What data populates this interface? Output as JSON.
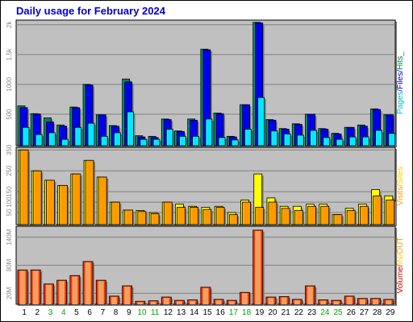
{
  "chart_data": {
    "type": "bar",
    "title": "Daily usage for February 2024",
    "categories": [
      "1",
      "2",
      "3",
      "4",
      "5",
      "6",
      "7",
      "8",
      "9",
      "10",
      "11",
      "12",
      "13",
      "14",
      "15",
      "16",
      "17",
      "18",
      "19",
      "20",
      "21",
      "22",
      "23",
      "24",
      "25",
      "26",
      "27",
      "28",
      "29"
    ],
    "weekend_days": [
      "3",
      "4",
      "10",
      "11",
      "17",
      "18",
      "24",
      "25"
    ],
    "colors": {
      "title": "#0000cc",
      "panel_bg": "#c0c0c0",
      "hits": "#008060",
      "files": "#0000ee",
      "pages": "#00e8ff",
      "visits": "#ff9900",
      "sites": "#ffff00",
      "kbytes": "#ff3300",
      "weekend_label": "#00a000",
      "label_pages": "#00c0c0",
      "label_files": "#0000cc",
      "label_hits": "#008040",
      "label_visits": "#ff9900",
      "label_sites": "#ffcc00",
      "label_volume": "#cc0000",
      "label_in": "#ffcc00",
      "label_out": "#ff9900"
    },
    "panels": [
      {
        "id": "hits",
        "yticks": [
          {
            "v": 500,
            "t": "500"
          },
          {
            "v": 1000,
            "t": "1000"
          },
          {
            "v": 1500,
            "t": "1,5k"
          },
          {
            "v": 2000,
            "t": "2k"
          }
        ],
        "ymax": 2050,
        "legend": [
          {
            "text": "Pages",
            "color": "label_pages"
          },
          {
            "text": "/",
            "color": "label_files"
          },
          {
            "text": "Files",
            "color": "label_files"
          },
          {
            "text": "/",
            "color": "label_files"
          },
          {
            "text": "Hits",
            "color": "label_hits"
          },
          {
            "text": "_",
            "color": "label_hits"
          }
        ],
        "series": [
          {
            "name": "Hits",
            "color": "hits",
            "values": [
              640,
              510,
              440,
              320,
              620,
              1000,
              490,
              310,
              1090,
              140,
              130,
              420,
              220,
              420,
              1590,
              520,
              130,
              660,
              2040,
              410,
              260,
              340,
              500,
              260,
              180,
              280,
              320,
              590,
              490
            ]
          },
          {
            "name": "Files",
            "color": "files",
            "values": [
              610,
              505,
              370,
              300,
              610,
              990,
              490,
              300,
              1040,
              120,
              110,
              410,
              210,
              400,
              1580,
              510,
              120,
              660,
              2030,
              400,
              250,
              330,
              500,
              250,
              170,
              280,
              300,
              580,
              490
            ]
          },
          {
            "name": "Pages",
            "color": "pages",
            "values": [
              280,
              160,
              190,
              80,
              280,
              350,
              130,
              190,
              540,
              80,
              80,
              250,
              130,
              130,
              420,
              110,
              70,
              250,
              780,
              220,
              170,
              150,
              230,
              110,
              80,
              120,
              120,
              230,
              180
            ]
          }
        ]
      },
      {
        "id": "visits",
        "yticks": [
          {
            "v": 50,
            "t": "50"
          },
          {
            "v": 100,
            "t": "100"
          },
          {
            "v": 150,
            "t": "150"
          },
          {
            "v": 250,
            "t": "250"
          },
          {
            "v": 350,
            "t": "350"
          }
        ],
        "ymax": 355,
        "legend": [
          {
            "text": "Visits",
            "color": "label_visits"
          },
          {
            "text": "/",
            "color": "label_visits"
          },
          {
            "text": "Sites",
            "color": "label_sites"
          }
        ],
        "series": [
          {
            "name": "Sites",
            "color": "sites",
            "values": [
              350,
              250,
              205,
              180,
              235,
              300,
              220,
              100,
              62,
              60,
              50,
              100,
              90,
              80,
              75,
              80,
              50,
              110,
              235,
              120,
              80,
              80,
              90,
              90,
              40,
              70,
              90,
              160,
              130
            ]
          },
          {
            "name": "Visits",
            "color": "visits",
            "values": [
              350,
              250,
              205,
              180,
              235,
              300,
              220,
              100,
              62,
              55,
              45,
              100,
              75,
              75,
              65,
              75,
              40,
              100,
              75,
              100,
              70,
              60,
              80,
              80,
              40,
              60,
              80,
              130,
              110
            ]
          }
        ]
      },
      {
        "id": "volume",
        "yticks": [
          {
            "v": 20,
            "t": "20M"
          },
          {
            "v": 80,
            "t": "80M"
          },
          {
            "v": 140,
            "t": "140M"
          }
        ],
        "ymax": 160,
        "legend": [
          {
            "text": "Volume",
            "color": "label_volume"
          },
          {
            "text": "/",
            "color": "label_volume"
          },
          {
            "text": "IN",
            "color": "label_in"
          },
          {
            "text": "/",
            "color": "label_in"
          },
          {
            "text": "OUT",
            "color": "label_out"
          }
        ],
        "series": [
          {
            "name": "KBytes",
            "color": "kbytes",
            "values": [
              70,
              70,
              40,
              48,
              58,
              88,
              48,
              14,
              36,
              3,
              4,
              12,
              5,
              6,
              33,
              7,
              5,
              22,
              155,
              12,
              13,
              7,
              36,
              6,
              5,
              14,
              9,
              9,
              7
            ]
          }
        ]
      }
    ]
  }
}
